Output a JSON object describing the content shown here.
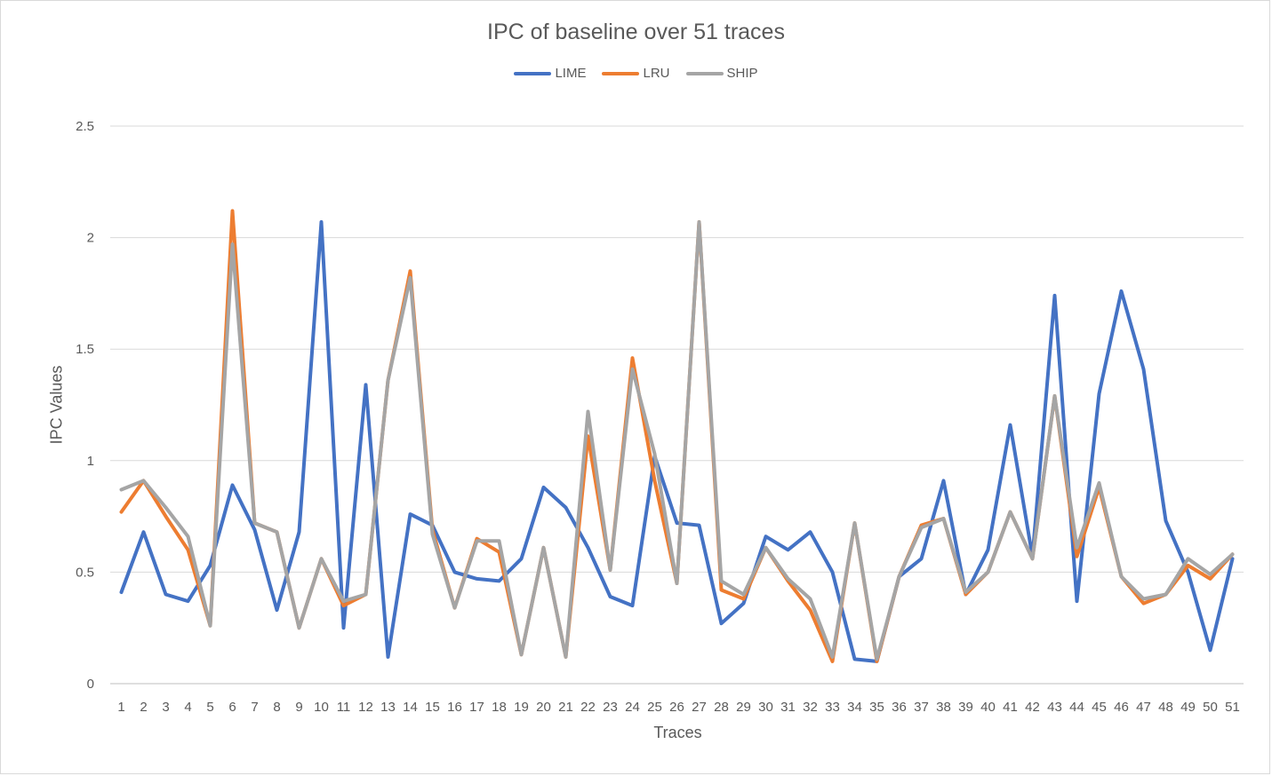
{
  "chart_data": {
    "type": "line",
    "title": "IPC of baseline over 51 traces",
    "xlabel": "Traces",
    "ylabel": "IPC Values",
    "ylim": [
      0,
      2.5
    ],
    "yticks": [
      "0",
      "0.5",
      "1",
      "1.5",
      "2",
      "2.5"
    ],
    "grid": "horizontal",
    "legend_position": "top",
    "categories": [
      "1",
      "2",
      "3",
      "4",
      "5",
      "6",
      "7",
      "8",
      "9",
      "10",
      "11",
      "12",
      "13",
      "14",
      "15",
      "16",
      "17",
      "18",
      "19",
      "20",
      "21",
      "22",
      "23",
      "24",
      "25",
      "26",
      "27",
      "28",
      "29",
      "30",
      "31",
      "32",
      "33",
      "34",
      "35",
      "36",
      "37",
      "38",
      "39",
      "40",
      "41",
      "42",
      "43",
      "44",
      "45",
      "46",
      "47",
      "48",
      "49",
      "50",
      "51"
    ],
    "series": [
      {
        "name": "LIME",
        "color": "#4472c4",
        "values": [
          0.41,
          0.68,
          0.4,
          0.37,
          0.53,
          0.89,
          0.69,
          0.33,
          0.68,
          2.07,
          0.25,
          1.34,
          0.12,
          0.76,
          0.71,
          0.5,
          0.47,
          0.46,
          0.56,
          0.88,
          0.79,
          0.61,
          0.39,
          0.35,
          1.02,
          0.72,
          0.71,
          0.27,
          0.36,
          0.66,
          0.6,
          0.68,
          0.5,
          0.11,
          0.1,
          0.48,
          0.56,
          0.91,
          0.4,
          0.6,
          1.16,
          0.57,
          1.74,
          0.37,
          1.3,
          1.76,
          1.41,
          0.73,
          0.5,
          0.15,
          0.56
        ]
      },
      {
        "name": "LRU",
        "color": "#ed7d31",
        "values": [
          0.77,
          0.91,
          0.75,
          0.6,
          0.26,
          2.12,
          0.72,
          0.68,
          0.25,
          0.56,
          0.35,
          0.4,
          1.36,
          1.85,
          0.69,
          0.34,
          0.65,
          0.59,
          0.13,
          0.61,
          0.12,
          1.11,
          0.51,
          1.46,
          0.91,
          0.45,
          2.07,
          0.42,
          0.38,
          0.61,
          0.46,
          0.33,
          0.1,
          0.72,
          0.1,
          0.48,
          0.71,
          0.74,
          0.4,
          0.5,
          0.77,
          0.56,
          1.29,
          0.57,
          0.88,
          0.48,
          0.36,
          0.4,
          0.53,
          0.47,
          0.58
        ]
      },
      {
        "name": "SHIP",
        "color": "#a5a5a5",
        "values": [
          0.87,
          0.91,
          0.79,
          0.66,
          0.26,
          1.97,
          0.72,
          0.68,
          0.25,
          0.56,
          0.37,
          0.4,
          1.36,
          1.82,
          0.67,
          0.34,
          0.64,
          0.64,
          0.13,
          0.61,
          0.12,
          1.22,
          0.51,
          1.41,
          1.03,
          0.45,
          2.07,
          0.46,
          0.4,
          0.61,
          0.47,
          0.38,
          0.12,
          0.72,
          0.11,
          0.48,
          0.7,
          0.74,
          0.41,
          0.5,
          0.77,
          0.56,
          1.29,
          0.61,
          0.9,
          0.48,
          0.38,
          0.4,
          0.56,
          0.49,
          0.58
        ]
      }
    ]
  }
}
